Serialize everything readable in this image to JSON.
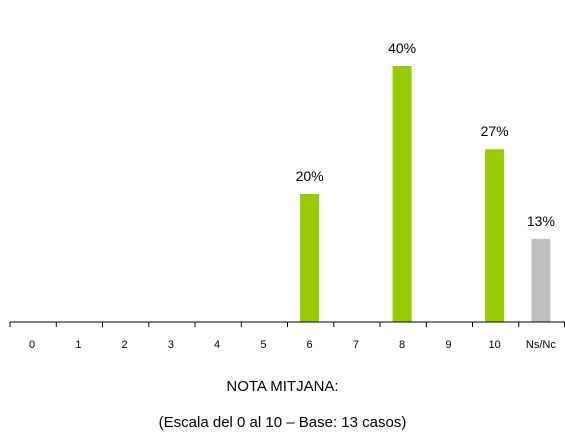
{
  "chart_data": {
    "type": "bar",
    "categories": [
      "0",
      "1",
      "2",
      "3",
      "4",
      "5",
      "6",
      "7",
      "8",
      "9",
      "10",
      "Ns/Nc"
    ],
    "values": [
      0,
      0,
      0,
      0,
      0,
      0,
      20,
      0,
      40,
      0,
      27,
      13
    ],
    "data_labels": [
      "",
      "",
      "",
      "",
      "",
      "",
      "20%",
      "",
      "40%",
      "",
      "27%",
      "13%"
    ],
    "unit": "%",
    "ylim": [
      0,
      50
    ],
    "grid": false,
    "legend": "none",
    "colors": {
      "bar": "#99cc00",
      "nsnc_bar": "#c0c0c0",
      "axis": "#000000"
    }
  },
  "footer": {
    "line1": "NOTA MITJANA:",
    "line2": "(Escala del 0 al 10 – Base: 13 casos)"
  }
}
